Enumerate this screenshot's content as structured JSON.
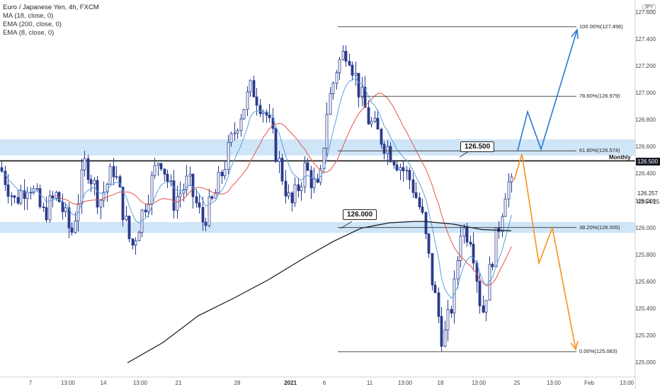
{
  "legend": {
    "title": "Euro / Japanese Yen, 4h, FXCM",
    "indicators": [
      "MA (18, close, 0)",
      "EMA (200, close, 0)",
      "EMA (8, close, 0)"
    ]
  },
  "currency": "JPY",
  "price_axis": [
    "127.600",
    "127.400",
    "127.200",
    "127.000",
    "126.800",
    "126.600",
    "126.400",
    "126.200",
    "126.000",
    "125.800",
    "125.600",
    "125.400",
    "125.200",
    "125.000"
  ],
  "price_tag": "126.500",
  "current_price": "126.257",
  "countdown": "03:54:15",
  "time_axis": [
    "7",
    "13:00",
    "14",
    "13:00",
    "21",
    "28",
    "2021",
    "6",
    "11",
    "13:00",
    "18",
    "13:00",
    "25",
    "13:00",
    "Feb",
    "13:00"
  ],
  "fib_levels": [
    {
      "label": "100.00%(127.496)",
      "value": 127.496
    },
    {
      "label": "78.60%(126.979)",
      "value": 126.979
    },
    {
      "label": "61.80%(126.574)",
      "value": 126.574
    },
    {
      "label": "38.20%(126.005)",
      "value": 126.005
    },
    {
      "label": "0.00%(125.083)",
      "value": 125.083
    }
  ],
  "callouts": {
    "upper": "126.500",
    "lower": "126.000"
  },
  "monthly_label": "Monthly",
  "colors": {
    "candle": "#2a3a8c",
    "zone": "#cfe5f8",
    "ma18": "#e5534b",
    "ema200": "#131722",
    "ema8": "#5aa0e0",
    "bull_arrow": "#2979d0",
    "bear_arrow": "#f7931a"
  },
  "chart_data": {
    "type": "line",
    "price_range": [
      125.0,
      127.6
    ],
    "horizontal_zones": [
      [
        126.54,
        126.66
      ],
      [
        125.965,
        126.045
      ]
    ],
    "horizontal_line": 126.5
  }
}
